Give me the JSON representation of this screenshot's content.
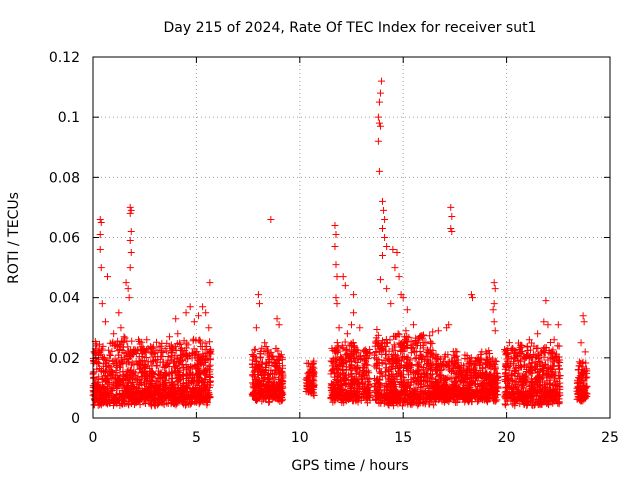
{
  "chart_data": {
    "type": "scatter",
    "title": "Day 215 of 2024, Rate Of TEC Index for receiver sut1",
    "xlabel": "GPS time / hours",
    "ylabel": "ROTI / TECUs",
    "xlim": [
      0,
      25
    ],
    "ylim": [
      0,
      0.12
    ],
    "x_ticks": [
      0,
      5,
      10,
      15,
      20,
      25
    ],
    "y_ticks": [
      0,
      0.02,
      0.04,
      0.06,
      0.08,
      0.1,
      0.12
    ],
    "x_tick_labels": [
      "0",
      "5",
      "10",
      "15",
      "20",
      "25"
    ],
    "y_tick_labels": [
      "0",
      "0.02",
      "0.04",
      "0.06",
      "0.08",
      "0.1",
      "0.12"
    ],
    "grid": true,
    "marker": "+",
    "color": "#ff0000",
    "clusters": [
      {
        "x": [
          0.0,
          5.7
        ],
        "y": [
          0.004,
          0.025
        ]
      },
      {
        "x": [
          7.7,
          9.2
        ],
        "y": [
          0.005,
          0.022
        ]
      },
      {
        "x": [
          10.3,
          10.7
        ],
        "y": [
          0.007,
          0.017
        ]
      },
      {
        "x": [
          11.5,
          13.4
        ],
        "y": [
          0.005,
          0.024
        ]
      },
      {
        "x": [
          13.6,
          16.5
        ],
        "y": [
          0.004,
          0.028
        ]
      },
      {
        "x": [
          16.5,
          19.6
        ],
        "y": [
          0.005,
          0.02
        ]
      },
      {
        "x": [
          19.9,
          22.6
        ],
        "y": [
          0.004,
          0.024
        ]
      },
      {
        "x": [
          23.4,
          23.9
        ],
        "y": [
          0.005,
          0.019
        ]
      }
    ],
    "series": [
      {
        "name": "ROTI",
        "points": [
          [
            0.35,
            0.066
          ],
          [
            0.4,
            0.065
          ],
          [
            0.35,
            0.061
          ],
          [
            0.35,
            0.056
          ],
          [
            0.4,
            0.05
          ],
          [
            0.45,
            0.038
          ],
          [
            0.7,
            0.047
          ],
          [
            1.25,
            0.035
          ],
          [
            1.35,
            0.03
          ],
          [
            1.6,
            0.045
          ],
          [
            1.7,
            0.043
          ],
          [
            1.75,
            0.04
          ],
          [
            1.8,
            0.07
          ],
          [
            1.85,
            0.069
          ],
          [
            1.8,
            0.068
          ],
          [
            1.85,
            0.062
          ],
          [
            1.8,
            0.059
          ],
          [
            1.85,
            0.055
          ],
          [
            1.8,
            0.05
          ],
          [
            0.6,
            0.032
          ],
          [
            1.0,
            0.028
          ],
          [
            1.5,
            0.027
          ],
          [
            2.2,
            0.026
          ],
          [
            2.6,
            0.026
          ],
          [
            4.0,
            0.033
          ],
          [
            4.1,
            0.028
          ],
          [
            4.5,
            0.035
          ],
          [
            4.7,
            0.037
          ],
          [
            5.3,
            0.037
          ],
          [
            5.45,
            0.035
          ],
          [
            5.65,
            0.045
          ],
          [
            4.9,
            0.032
          ],
          [
            5.1,
            0.034
          ],
          [
            5.6,
            0.03
          ],
          [
            3.7,
            0.027
          ],
          [
            7.9,
            0.03
          ],
          [
            8.0,
            0.041
          ],
          [
            8.05,
            0.038
          ],
          [
            8.6,
            0.066
          ],
          [
            8.9,
            0.033
          ],
          [
            9.0,
            0.031
          ],
          [
            8.3,
            0.025
          ],
          [
            10.5,
            0.017
          ],
          [
            11.7,
            0.064
          ],
          [
            11.75,
            0.061
          ],
          [
            11.7,
            0.057
          ],
          [
            11.75,
            0.051
          ],
          [
            11.8,
            0.047
          ],
          [
            11.75,
            0.04
          ],
          [
            11.8,
            0.038
          ],
          [
            12.1,
            0.047
          ],
          [
            12.2,
            0.044
          ],
          [
            12.6,
            0.041
          ],
          [
            12.6,
            0.035
          ],
          [
            12.5,
            0.031
          ],
          [
            11.9,
            0.03
          ],
          [
            12.9,
            0.03
          ],
          [
            12.3,
            0.028
          ],
          [
            13.95,
            0.112
          ],
          [
            13.9,
            0.108
          ],
          [
            13.85,
            0.105
          ],
          [
            13.8,
            0.1
          ],
          [
            13.85,
            0.098
          ],
          [
            13.9,
            0.097
          ],
          [
            13.8,
            0.092
          ],
          [
            13.85,
            0.082
          ],
          [
            14.0,
            0.072
          ],
          [
            14.05,
            0.069
          ],
          [
            14.1,
            0.066
          ],
          [
            14.0,
            0.063
          ],
          [
            14.1,
            0.06
          ],
          [
            14.2,
            0.057
          ],
          [
            14.0,
            0.054
          ],
          [
            14.5,
            0.056
          ],
          [
            14.7,
            0.055
          ],
          [
            14.6,
            0.05
          ],
          [
            14.8,
            0.047
          ],
          [
            14.9,
            0.041
          ],
          [
            15.0,
            0.04
          ],
          [
            13.9,
            0.046
          ],
          [
            14.2,
            0.043
          ],
          [
            15.2,
            0.036
          ],
          [
            14.4,
            0.038
          ],
          [
            15.5,
            0.031
          ],
          [
            15.9,
            0.027
          ],
          [
            16.1,
            0.025
          ],
          [
            17.3,
            0.07
          ],
          [
            17.35,
            0.067
          ],
          [
            17.3,
            0.063
          ],
          [
            17.35,
            0.062
          ],
          [
            17.2,
            0.031
          ],
          [
            17.1,
            0.03
          ],
          [
            16.7,
            0.029
          ],
          [
            17.6,
            0.022
          ],
          [
            18.3,
            0.041
          ],
          [
            18.35,
            0.04
          ],
          [
            19.4,
            0.045
          ],
          [
            19.45,
            0.043
          ],
          [
            19.4,
            0.038
          ],
          [
            19.35,
            0.036
          ],
          [
            19.4,
            0.032
          ],
          [
            19.45,
            0.029
          ],
          [
            19.0,
            0.022
          ],
          [
            18.8,
            0.022
          ],
          [
            21.9,
            0.039
          ],
          [
            21.8,
            0.032
          ],
          [
            22.0,
            0.031
          ],
          [
            22.5,
            0.031
          ],
          [
            21.5,
            0.028
          ],
          [
            21.1,
            0.026
          ],
          [
            20.7,
            0.024
          ],
          [
            22.3,
            0.026
          ],
          [
            23.7,
            0.034
          ],
          [
            23.75,
            0.032
          ],
          [
            23.6,
            0.025
          ],
          [
            23.8,
            0.022
          ]
        ]
      }
    ]
  }
}
